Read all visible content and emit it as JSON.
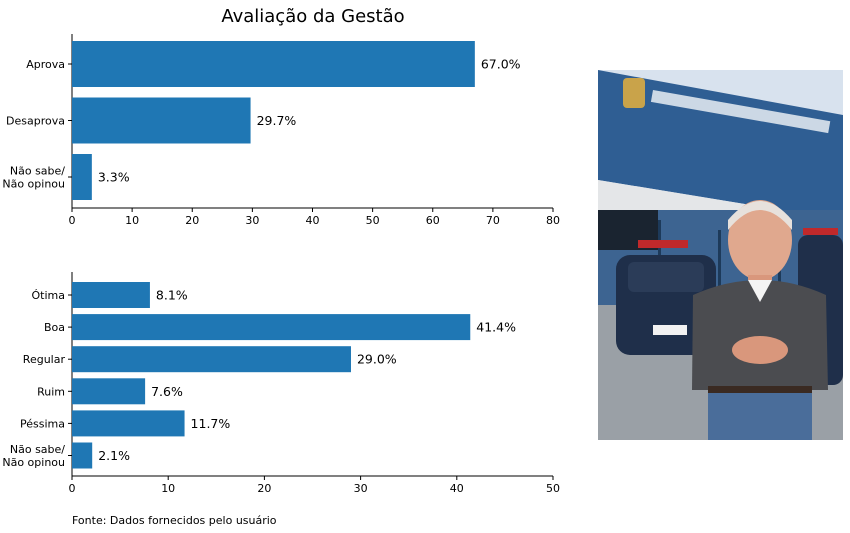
{
  "title": "Avaliação da Gestão",
  "source": "Fonte: Dados fornecidos pelo usuário",
  "colors": {
    "bar": "#1f77b4"
  },
  "chart_data": [
    {
      "type": "bar",
      "orientation": "horizontal",
      "title": "Avaliação da Gestão",
      "categories": [
        "Aprova",
        "Desaprova",
        "Não sabe/\nNão opinou"
      ],
      "values": [
        67.0,
        29.7,
        3.3
      ],
      "value_labels": [
        "67.0%",
        "29.7%",
        "3.3%"
      ],
      "xlim": [
        0,
        80
      ],
      "xticks": [
        0,
        10,
        20,
        30,
        40,
        50,
        60,
        70,
        80
      ],
      "grid": false
    },
    {
      "type": "bar",
      "orientation": "horizontal",
      "categories": [
        "Ótima",
        "Boa",
        "Regular",
        "Ruim",
        "Péssima",
        "Não sabe/\nNão opinou"
      ],
      "values": [
        8.1,
        41.4,
        29.0,
        7.6,
        11.7,
        2.1
      ],
      "value_labels": [
        "8.1%",
        "41.4%",
        "29.0%",
        "7.6%",
        "11.7%",
        "2.1%"
      ],
      "xlim": [
        0,
        50
      ],
      "xticks": [
        0,
        10,
        20,
        30,
        40,
        50
      ],
      "grid": false
    }
  ]
}
